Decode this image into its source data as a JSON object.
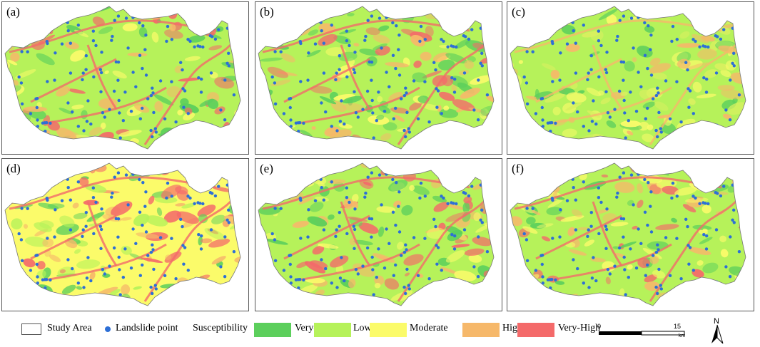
{
  "panels": [
    {
      "label": "(a)"
    },
    {
      "label": "(b)"
    },
    {
      "label": "(c)"
    },
    {
      "label": "(d)"
    },
    {
      "label": "(e)"
    },
    {
      "label": "(f)"
    }
  ],
  "legend": {
    "study_area": "Study Area",
    "landslide_point": "Landslide point",
    "susceptibility": "Susceptibility",
    "classes": [
      {
        "label": "Very-Low",
        "color": "#5ccf5c"
      },
      {
        "label": "Low",
        "color": "#b6f25a"
      },
      {
        "label": "Moderate",
        "color": "#fbfb6a"
      },
      {
        "label": "High",
        "color": "#f6b86a"
      },
      {
        "label": "Very-High",
        "color": "#f46a6a"
      }
    ],
    "landslide_color": "#2d6fd6"
  },
  "scale_bar": {
    "start": "0",
    "end": "15",
    "unit": "km"
  },
  "north_arrow": {
    "label": "N"
  }
}
